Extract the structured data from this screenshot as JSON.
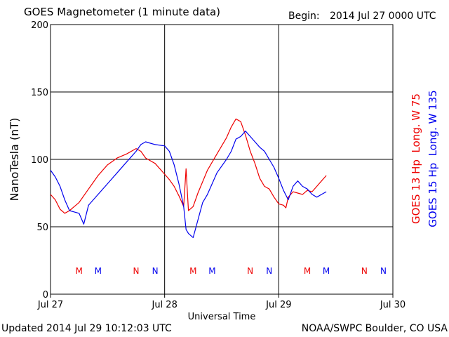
{
  "header": {
    "title": "GOES Magnetometer (1 minute data)",
    "begin_label": "Begin:",
    "begin_value": "2014 Jul 27 0000 UTC"
  },
  "footer": {
    "updated": "Updated 2014 Jul 29 10:12:03 UTC",
    "credit": "NOAA/SWPC Boulder, CO USA"
  },
  "legend": {
    "goes13": "GOES 13 Hp  Long. W 75",
    "goes15": "GOES 15 Hp  Long. W 135"
  },
  "colors": {
    "goes13": "#ee0000",
    "goes15": "#0000ee"
  },
  "chart_data": {
    "type": "line",
    "title": "GOES Magnetometer (1 minute data)",
    "xlabel": "Universal Time",
    "ylabel": "NanoTesla (nT)",
    "xlim": [
      "2014-07-27 00:00",
      "2014-07-30 00:00"
    ],
    "ylim": [
      0,
      200
    ],
    "grid": true,
    "x_ticks": [
      "Jul 27",
      "Jul 28",
      "Jul 29",
      "Jul 30"
    ],
    "y_ticks": [
      0,
      50,
      100,
      150,
      200
    ],
    "series": [
      {
        "name": "GOES 13 Hp  Long. W 75",
        "x_hours": [
          0,
          1,
          2,
          3,
          4,
          5,
          6,
          8,
          10,
          12,
          14,
          16,
          18,
          19,
          20,
          22,
          24,
          25,
          26,
          27,
          28,
          28.5,
          29,
          30,
          31,
          33,
          35,
          37,
          38,
          39,
          40,
          41,
          42,
          43,
          44,
          45,
          46,
          47,
          48,
          49,
          49.5,
          50,
          51,
          52,
          53,
          54,
          55,
          56,
          57,
          58
        ],
        "values": [
          74,
          70,
          63,
          60,
          62,
          65,
          68,
          78,
          88,
          96,
          101,
          104,
          108,
          106,
          101,
          97,
          89,
          85,
          80,
          73,
          65,
          93,
          62,
          65,
          75,
          92,
          104,
          116,
          124,
          130,
          128,
          118,
          106,
          97,
          86,
          80,
          78,
          72,
          67,
          66,
          64,
          72,
          76,
          75,
          74,
          77,
          76,
          80,
          84,
          88
        ]
      },
      {
        "name": "GOES 15 Hp  Long. W 135",
        "x_hours": [
          0,
          1,
          2,
          3,
          4,
          5,
          6,
          7,
          8,
          10,
          12,
          14,
          16,
          18,
          19,
          20,
          21,
          22,
          24,
          25,
          26,
          27,
          28,
          28.5,
          29,
          30,
          31,
          32,
          33,
          35,
          37,
          38,
          39,
          40,
          41,
          42,
          43,
          44,
          45,
          46,
          47,
          48,
          49,
          50,
          51,
          52,
          53,
          54,
          55,
          56,
          57,
          58
        ],
        "values": [
          92,
          87,
          80,
          70,
          62,
          61,
          60,
          52,
          66,
          74,
          82,
          90,
          98,
          106,
          111,
          113,
          112,
          111,
          110,
          106,
          96,
          82,
          65,
          48,
          45,
          42,
          55,
          68,
          74,
          90,
          100,
          106,
          115,
          117,
          121,
          117,
          113,
          109,
          106,
          100,
          94,
          86,
          77,
          70,
          80,
          84,
          80,
          78,
          74,
          72,
          74,
          76
        ]
      }
    ],
    "event_markers": [
      {
        "label": "M",
        "x_hours": 6,
        "series": "GOES 13 Hp  Long. W 75"
      },
      {
        "label": "M",
        "x_hours": 10,
        "series": "GOES 15 Hp  Long. W 135"
      },
      {
        "label": "N",
        "x_hours": 18,
        "series": "GOES 13 Hp  Long. W 75"
      },
      {
        "label": "N",
        "x_hours": 22,
        "series": "GOES 15 Hp  Long. W 135"
      },
      {
        "label": "M",
        "x_hours": 30,
        "series": "GOES 13 Hp  Long. W 75"
      },
      {
        "label": "M",
        "x_hours": 34,
        "series": "GOES 15 Hp  Long. W 135"
      },
      {
        "label": "N",
        "x_hours": 42,
        "series": "GOES 13 Hp  Long. W 75"
      },
      {
        "label": "N",
        "x_hours": 46,
        "series": "GOES 15 Hp  Long. W 135"
      },
      {
        "label": "M",
        "x_hours": 54,
        "series": "GOES 13 Hp  Long. W 75"
      },
      {
        "label": "M",
        "x_hours": 58,
        "series": "GOES 15 Hp  Long. W 135"
      },
      {
        "label": "N",
        "x_hours": 66,
        "series": "GOES 13 Hp  Long. W 75"
      },
      {
        "label": "N",
        "x_hours": 70,
        "series": "GOES 15 Hp  Long. W 135"
      }
    ]
  }
}
